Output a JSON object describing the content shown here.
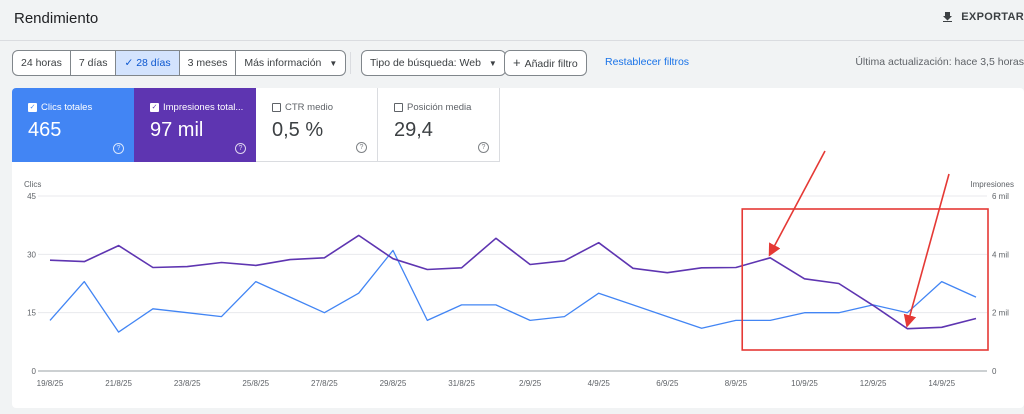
{
  "header": {
    "title": "Rendimiento",
    "export_label": "EXPORTAR"
  },
  "filters": {
    "ranges": [
      {
        "label": "24 horas",
        "active": false
      },
      {
        "label": "7 días",
        "active": false
      },
      {
        "label": "28 días",
        "active": true
      },
      {
        "label": "3 meses",
        "active": false
      },
      {
        "label": "Más información",
        "active": false
      }
    ],
    "search_type": "Tipo de búsqueda: Web",
    "add_filter": "Añadir filtro",
    "reset": "Restablecer filtros",
    "last_update": "Última actualización: hace 3,5 horas"
  },
  "metrics": {
    "clicks": {
      "label": "Clics totales",
      "value": "465",
      "checked": true
    },
    "impressions": {
      "label": "Impresiones total...",
      "value": "97 mil",
      "checked": true
    },
    "ctr": {
      "label": "CTR medio",
      "value": "0,5 %",
      "checked": false
    },
    "position": {
      "label": "Posición media",
      "value": "29,4",
      "checked": false
    }
  },
  "colors": {
    "clicks": "#4285f4",
    "impressions": "#5e35b1",
    "annotation": "#e53935"
  },
  "chart_data": {
    "type": "line",
    "title": "",
    "x_ticks": [
      "19/8/25",
      "21/8/25",
      "23/8/25",
      "25/8/25",
      "27/8/25",
      "29/8/25",
      "31/8/25",
      "2/9/25",
      "4/9/25",
      "6/9/25",
      "8/9/25",
      "10/9/25",
      "12/9/25",
      "14/9/25"
    ],
    "x": [
      "19/8/25",
      "20/8/25",
      "21/8/25",
      "22/8/25",
      "23/8/25",
      "24/8/25",
      "25/8/25",
      "26/8/25",
      "27/8/25",
      "28/8/25",
      "29/8/25",
      "30/8/25",
      "31/8/25",
      "1/9/25",
      "2/9/25",
      "3/9/25",
      "4/9/25",
      "5/9/25",
      "6/9/25",
      "7/9/25",
      "8/9/25",
      "9/9/25",
      "10/9/25",
      "11/9/25",
      "12/9/25",
      "13/9/25",
      "14/9/25",
      "15/9/25"
    ],
    "left_axis": {
      "label": "Clics",
      "ticks": [
        "0",
        "15",
        "30",
        "45"
      ],
      "ylim": [
        0,
        45
      ]
    },
    "right_axis": {
      "label": "Impresiones",
      "ticks": [
        "0",
        "2 mil",
        "4 mil",
        "6 mil"
      ],
      "ylim": [
        0,
        6000
      ]
    },
    "series": [
      {
        "name": "Clics",
        "axis": "left",
        "values": [
          13,
          23,
          10,
          16,
          15,
          14,
          23,
          19,
          15,
          20,
          31,
          13,
          17,
          17,
          13,
          14,
          20,
          17,
          14,
          11,
          13,
          13,
          15,
          15,
          17,
          15,
          23,
          19
        ]
      },
      {
        "name": "Impresiones",
        "axis": "right",
        "values": [
          3800,
          3750,
          4300,
          3550,
          3580,
          3720,
          3620,
          3820,
          3880,
          4650,
          3850,
          3480,
          3540,
          4550,
          3650,
          3780,
          4400,
          3520,
          3370,
          3540,
          3550,
          3880,
          3160,
          3000,
          2250,
          1450,
          1500,
          1800
        ]
      }
    ],
    "annotation": {
      "box_from": "9/9/25",
      "box_to": "15/9/25",
      "arrows": 2
    }
  }
}
